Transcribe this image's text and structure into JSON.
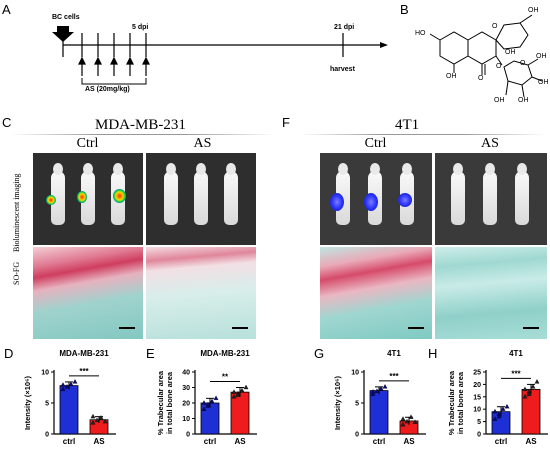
{
  "panels": {
    "a": "A",
    "b": "B",
    "c": "C",
    "d": "D",
    "e": "E",
    "f": "F",
    "g": "G",
    "h": "H"
  },
  "timeline": {
    "bc_cells": "BC cells",
    "five_dpi": "5 dpi",
    "twentyone_dpi": "21 dpi",
    "harvest": "harvest",
    "treatment": "AS (20mg/kg)"
  },
  "structure": {
    "labels": [
      "HO",
      "OH",
      "O",
      "OH",
      "O",
      "OH",
      "O",
      "OH",
      "OH",
      "O",
      "OH",
      "OH"
    ]
  },
  "panel_c": {
    "title": "MDA-MB-231",
    "col_ctrl": "Ctrl",
    "col_as": "AS",
    "row_bli": "Bioluminescent imaging",
    "row_sofg": "SO-FG"
  },
  "panel_f": {
    "title": "4T1",
    "col_ctrl": "Ctrl",
    "col_as": "AS"
  },
  "colors": {
    "ctrl_bar": "#1f2fd6",
    "as_bar": "#ee1c1c",
    "stain_red": "#d03a5a",
    "stain_teal": "#7fc6c0"
  },
  "chart_data": [
    {
      "type": "bar",
      "panel": "D",
      "title": "MDA-MB-231",
      "ylabel": "Intensity (×10⁶)",
      "categories": [
        "ctrl",
        "AS"
      ],
      "values": [
        7.8,
        2.3
      ],
      "errors": [
        0.6,
        0.5
      ],
      "points": [
        [
          7.2,
          7.6,
          8.0,
          8.4,
          7.9
        ],
        [
          1.8,
          2.2,
          2.6,
          2.0,
          2.8
        ]
      ],
      "ylim": [
        0,
        10
      ],
      "ticks": [
        0,
        5,
        10
      ],
      "significance": "***"
    },
    {
      "type": "bar",
      "panel": "E",
      "title": "MDA-MB-231",
      "ylabel": "% Trabecular area in total bone area",
      "categories": [
        "ctrl",
        "AS"
      ],
      "values": [
        20,
        27
      ],
      "errors": [
        3,
        3
      ],
      "points": [
        [
          16,
          18,
          21,
          23,
          20,
          19
        ],
        [
          24,
          26,
          28,
          30,
          27,
          25
        ]
      ],
      "ylim": [
        0,
        40
      ],
      "ticks": [
        0,
        10,
        20,
        30,
        40
      ],
      "significance": "**"
    },
    {
      "type": "bar",
      "panel": "G",
      "title": "4T1",
      "ylabel": "Intensity (×10⁶)",
      "categories": [
        "ctrl",
        "AS"
      ],
      "values": [
        7.0,
        2.1
      ],
      "errors": [
        0.6,
        0.6
      ],
      "points": [
        [
          6.4,
          6.9,
          7.3,
          7.6,
          6.8
        ],
        [
          1.5,
          2.0,
          2.7,
          1.9,
          2.4
        ]
      ],
      "ylim": [
        0,
        10
      ],
      "ticks": [
        0,
        5,
        10
      ],
      "significance": "***"
    },
    {
      "type": "bar",
      "panel": "H",
      "title": "4T1",
      "ylabel": "% Trabecular area in total bone area",
      "categories": [
        "ctrl",
        "AS"
      ],
      "values": [
        9,
        18
      ],
      "errors": [
        2,
        2
      ],
      "points": [
        [
          6,
          8,
          10,
          11,
          9,
          7
        ],
        [
          15,
          17,
          19,
          21,
          18,
          16
        ]
      ],
      "ylim": [
        0,
        25
      ],
      "ticks": [
        0,
        5,
        10,
        15,
        20,
        25
      ],
      "significance": "***"
    }
  ]
}
